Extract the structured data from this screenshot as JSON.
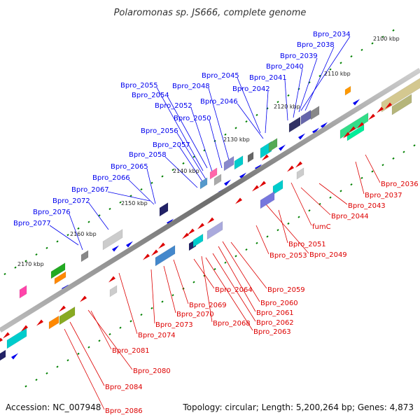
{
  "title": "Polaromonas sp. JS666, complete genome",
  "accession_text": "Accession: NC_007948",
  "topology_text": "Topology: circular; Length: 5,200,264 bp; Genes: 4,873",
  "colors": {
    "plus": "#0000ee",
    "minus": "#dd0000",
    "ticks": "#008000",
    "backbone": "#888888"
  },
  "kbp_labels": [
    "2100 kbp",
    "2110 kbp",
    "2120 kbp",
    "2130 kbp",
    "2140 kbp",
    "2150 kbp",
    "2160 kbp",
    "2170 kbp"
  ],
  "plus_genes": [
    "Bpro_2034",
    "Bpro_2038",
    "Bpro_2039",
    "Bpro_2040",
    "Bpro_2041",
    "Bpro_2042",
    "Bpro_2045",
    "Bpro_2046",
    "Bpro_2048",
    "Bpro_2050",
    "Bpro_2052",
    "Bpro_2054",
    "Bpro_2055",
    "Bpro_2056",
    "Bpro_2057",
    "Bpro_2058",
    "Bpro_2065",
    "Bpro_2066",
    "Bpro_2067",
    "Bpro_2072",
    "Bpro_2076",
    "Bpro_2077"
  ],
  "minus_genes": [
    "Bpro_2036",
    "Bpro_2037",
    "Bpro_2043",
    "Bpro_2044",
    "fumC",
    "Bpro_2051",
    "Bpro_2049",
    "Bpro_2053",
    "Bpro_2059",
    "Bpro_2060",
    "Bpro_2061",
    "Bpro_2062",
    "Bpro_2063",
    "Bpro_2064",
    "Bpro_2068",
    "Bpro_2069",
    "Bpro_2070",
    "Bpro_2073",
    "Bpro_2074",
    "Bpro_2081",
    "Bpro_2080",
    "Bpro_2084",
    "Bpro_2086"
  ]
}
